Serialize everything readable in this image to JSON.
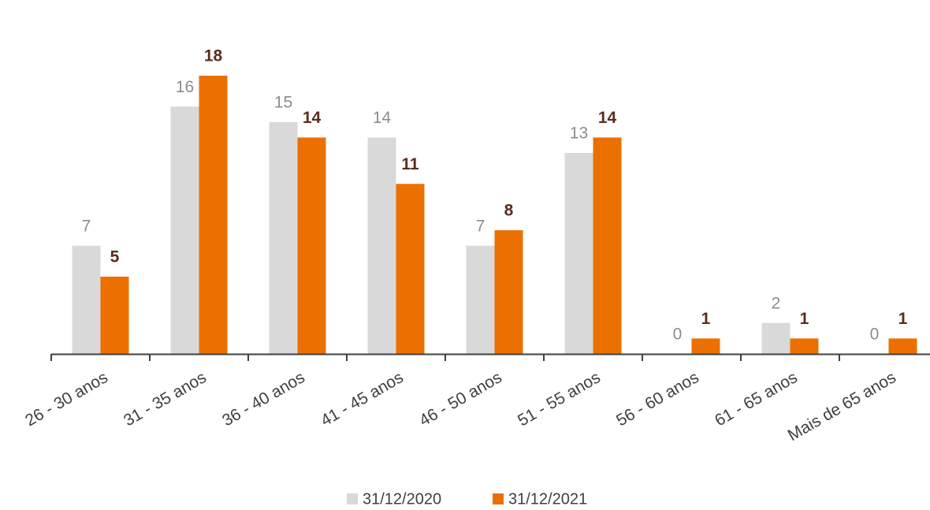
{
  "chart_data": {
    "type": "bar",
    "categories": [
      "26 - 30 anos",
      "31 - 35 anos",
      "36 - 40 anos",
      "41 - 45 anos",
      "46 - 50 anos",
      "51 - 55 anos",
      "56 - 60 anos",
      "61 - 65 anos",
      "Mais de 65 anos"
    ],
    "series": [
      {
        "name": "31/12/2020",
        "color": "#d9d9d9",
        "values": [
          7,
          16,
          15,
          14,
          7,
          13,
          0,
          2,
          0
        ]
      },
      {
        "name": "31/12/2021",
        "color": "#ec7000",
        "values": [
          5,
          18,
          14,
          11,
          8,
          14,
          1,
          1,
          1
        ]
      }
    ],
    "legend": "bottom"
  }
}
